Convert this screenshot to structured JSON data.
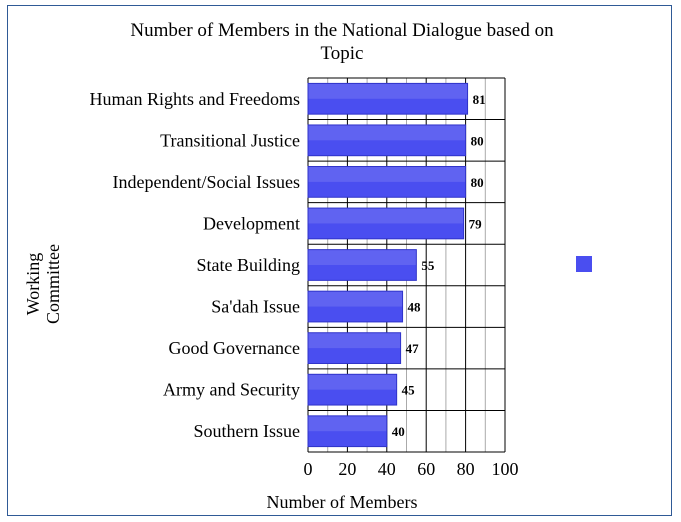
{
  "chart_data": {
    "type": "bar",
    "orientation": "horizontal",
    "title": "Number of Members in the National Dialogue based on Topic",
    "title_lines": [
      "Number of Members in the National Dialogue based on",
      "Topic"
    ],
    "xlabel": "Number of Members",
    "ylabel": "Working Committee",
    "ylabel_lines": [
      "Working",
      "Committee"
    ],
    "xlim": [
      0,
      100
    ],
    "xticks": [
      0,
      20,
      40,
      60,
      80,
      100
    ],
    "grid": true,
    "legend_position": "right",
    "categories": [
      "Human Rights and Freedoms",
      "Transitional Justice",
      "Independent/Social Issues",
      "Development",
      "State Building",
      "Sa'dah Issue",
      "Good Governance",
      "Army and Security",
      "Southern Issue"
    ],
    "series": [
      {
        "name": "",
        "color": "#4a4ef0",
        "values": [
          81,
          80,
          80,
          79,
          55,
          48,
          47,
          45,
          40
        ]
      }
    ]
  }
}
